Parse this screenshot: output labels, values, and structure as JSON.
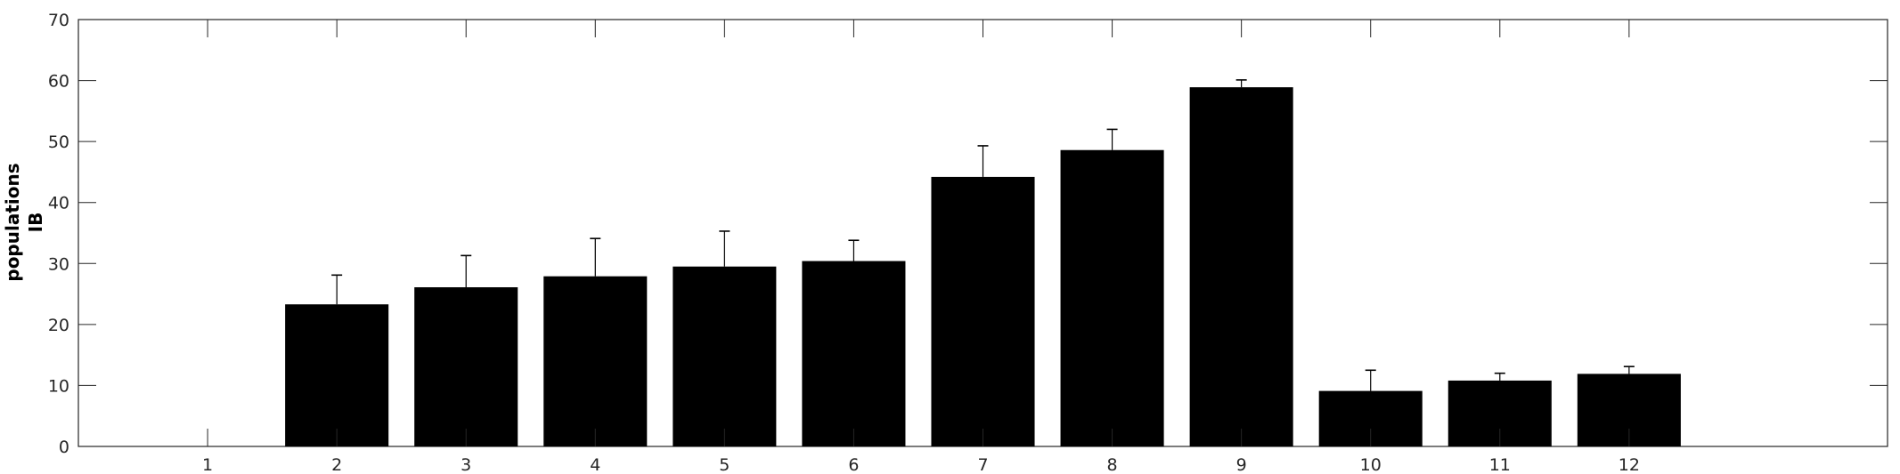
{
  "chart_data": {
    "type": "bar",
    "title": "",
    "xlabel": "",
    "ylabel_lines": [
      "populations",
      "IB"
    ],
    "categories": [
      "1",
      "2",
      "3",
      "4",
      "5",
      "6",
      "7",
      "8",
      "9",
      "10",
      "11",
      "12"
    ],
    "values": [
      0,
      23.3,
      26.1,
      27.9,
      29.5,
      30.4,
      44.2,
      48.6,
      58.9,
      9.1,
      10.8,
      11.9
    ],
    "error_upper": [
      0,
      4.8,
      5.2,
      6.2,
      5.8,
      3.4,
      5.1,
      3.4,
      1.2,
      3.4,
      1.2,
      1.2
    ],
    "ylim": [
      0,
      70
    ],
    "xlim": [
      0,
      14
    ],
    "yticks": [
      0,
      10,
      20,
      30,
      40,
      50,
      60,
      70
    ],
    "grid": false,
    "legend": "none",
    "bar_color": "#000000",
    "axis_color": "#262626"
  }
}
